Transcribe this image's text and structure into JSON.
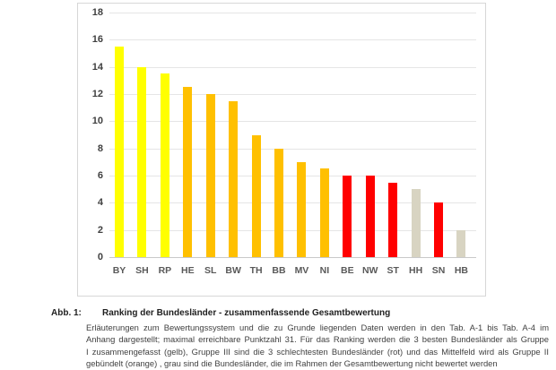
{
  "chart_data": {
    "type": "bar",
    "title": "",
    "categories": [
      "BY",
      "SH",
      "RP",
      "HE",
      "SL",
      "BW",
      "TH",
      "BB",
      "MV",
      "NI",
      "BE",
      "NW",
      "ST",
      "HH",
      "SN",
      "HB"
    ],
    "values": [
      15.5,
      14,
      13.5,
      12.5,
      12,
      11.5,
      9,
      8,
      7,
      6.5,
      6,
      6,
      5.5,
      5,
      4,
      2
    ],
    "bar_groups": [
      "yellow",
      "yellow",
      "yellow",
      "orange",
      "orange",
      "orange",
      "orange",
      "orange",
      "orange",
      "orange",
      "red",
      "red",
      "red",
      "gray",
      "red",
      "gray"
    ],
    "xlabel": "",
    "ylabel": "",
    "ylim": [
      0,
      18
    ],
    "yticks": [
      18,
      16,
      14,
      12,
      10,
      8,
      6,
      4,
      2,
      0
    ],
    "grid": "horizontal",
    "legend": "none"
  },
  "palette": {
    "yellow": "#ffff00",
    "orange": "#ffc000",
    "red": "#ff0000",
    "gray": "#d8d4c2",
    "gridline": "#e5e5e5",
    "axis_line": "#c9c9c9",
    "tick_text": "#404040"
  },
  "caption": {
    "label": "Abb. 1:",
    "title": "Ranking der Bundesländer - zusammenfassende Gesamtbewertung",
    "lines": [
      "Erläuterungen zum Bewertungssystem und die zu Grunde liegenden Daten werden in den Tab. A-1 bis Tab. A-4 im",
      "Anhang dargestellt; maximal erreichbare Punktzahl 31. Für das Ranking werden die 3 besten Bundesländer als Gruppe",
      "I zusammengefasst (gelb), Gruppe III sind die 3 schlechtesten Bundesländer (rot) und das Mittelfeld wird als Gruppe II",
      "gebündelt (orange) , grau sind die Bundesländer, die im Rahmen der Gesamtbewertung nicht bewertet werden"
    ]
  }
}
